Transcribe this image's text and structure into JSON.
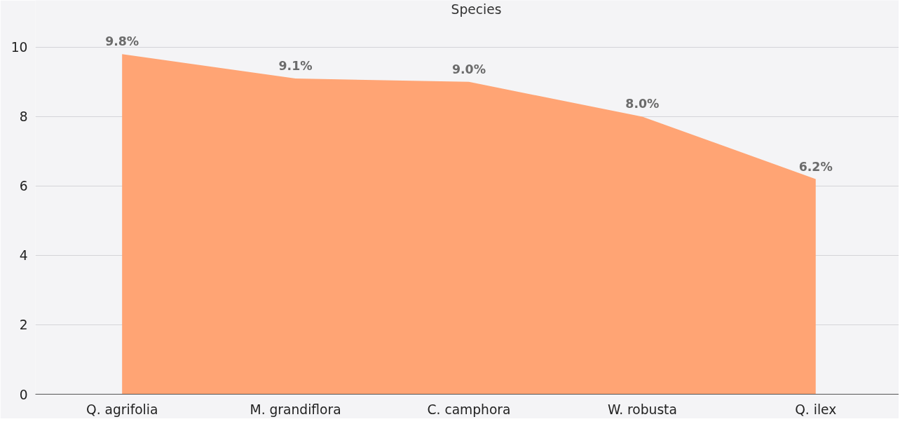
{
  "chart_data": {
    "type": "area",
    "categories": [
      "Q. agrifolia",
      "M. grandiflora",
      "C. camphora",
      "W. robusta",
      "Q. ilex"
    ],
    "series": [
      {
        "name": "Species",
        "color": "#ffa474",
        "values": [
          9.8,
          9.1,
          9.0,
          8.0,
          6.2
        ],
        "value_labels": [
          "9.8%",
          "9.1%",
          "9.0%",
          "8.0%",
          "6.2%"
        ]
      }
    ],
    "ylim": [
      0,
      11.35
    ],
    "yticks": [
      0,
      2,
      4,
      6,
      8,
      10
    ],
    "grid": "y",
    "legend": "top"
  }
}
